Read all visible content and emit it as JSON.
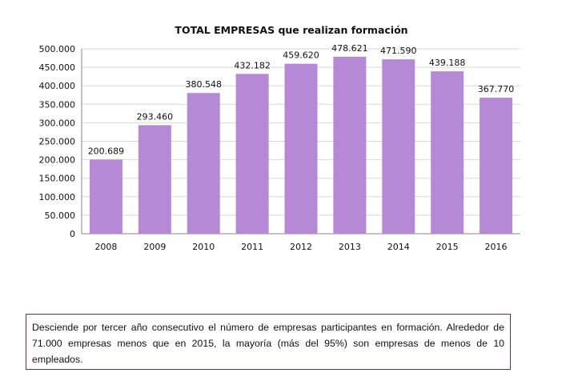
{
  "chart_data": {
    "type": "bar",
    "title": "TOTAL EMPRESAS  que realizan  formación",
    "categories": [
      "2008",
      "2009",
      "2010",
      "2011",
      "2012",
      "2013",
      "2014",
      "2015",
      "2016"
    ],
    "values": [
      200689,
      293460,
      380548,
      432182,
      459620,
      478621,
      471590,
      439188,
      367770
    ],
    "value_labels": [
      "200.689",
      "293.460",
      "380.548",
      "432.182",
      "459.620",
      "478.621",
      "471.590",
      "439.188",
      "367.770"
    ],
    "ylim": [
      0,
      500000
    ],
    "yticks": [
      "0",
      "50.000",
      "100.000",
      "150.000",
      "200.000",
      "250.000",
      "300.000",
      "350.000",
      "400.000",
      "450.000",
      "500.000"
    ],
    "grid": true,
    "bar_color": "#b589d6"
  },
  "note": "Desciende por tercer año consecutivo el número de empresas participantes en formación. Alrededor de 71.000 empresas menos que en 2015, la mayoría (más del 95%) son empresas de menos de 10 empleados."
}
